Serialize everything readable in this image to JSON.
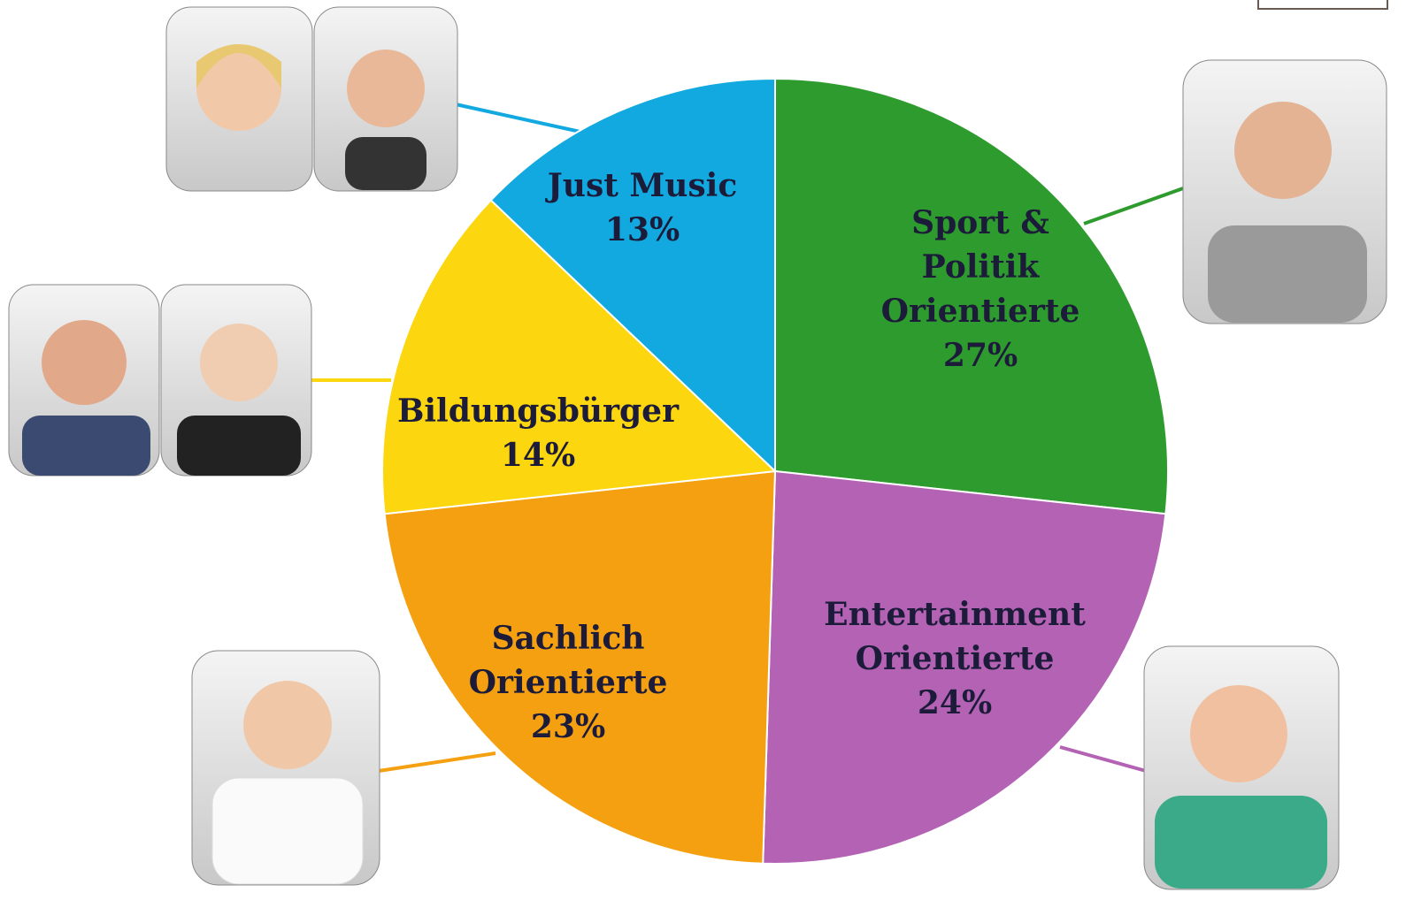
{
  "chart_data": {
    "type": "pie",
    "categories": [
      "Sport & Politik Orientierte",
      "Entertainment Orientierte",
      "Sachlich Orientierte",
      "Bildungsbürger",
      "Just Music"
    ],
    "values": [
      27,
      24,
      23,
      14,
      13
    ],
    "value_labels": [
      "27%",
      "24%",
      "23%",
      "14%",
      "13%"
    ],
    "colors": [
      "#2e9b2e",
      "#b463b4",
      "#f4a010",
      "#fcd60e",
      "#12a9e0"
    ]
  }
}
